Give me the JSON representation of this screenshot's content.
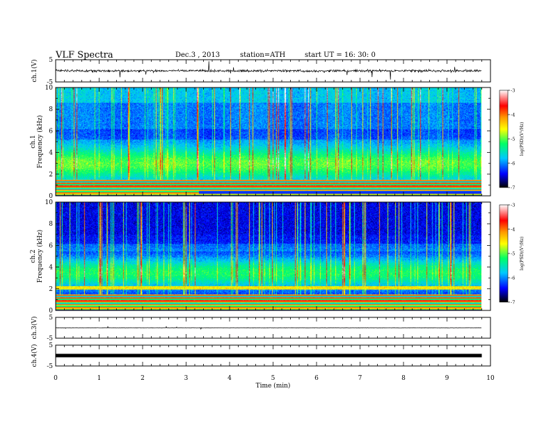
{
  "header": {
    "title": "VLF  Spectra",
    "date": "Dec.3  , 2013",
    "station": "station=ATH",
    "start": "start  UT =   16: 30: 0"
  },
  "chart_data": {
    "type": "heatmap",
    "xlabel": "Time  (min)",
    "xlim": [
      0,
      10
    ],
    "x_ticks": [
      0,
      1,
      2,
      3,
      4,
      5,
      6,
      7,
      8,
      9,
      10
    ],
    "data_end_min": 9.8,
    "panels": [
      {
        "id": "ch1-wave",
        "type": "line",
        "ylabel": "ch.1(V)",
        "ylim": [
          -5,
          5
        ],
        "y_ticks": [
          5,
          -5
        ],
        "baseline": 0,
        "noise": "high"
      },
      {
        "id": "ch1-spec",
        "type": "heatmap",
        "ylabel_top": "ch.1",
        "ylabel": "Frequency  (kHz)",
        "ylim": [
          0,
          10
        ],
        "y_ticks": [
          0,
          2,
          4,
          6,
          8,
          10
        ],
        "noise_band_khz": [
          1.5,
          4.5
        ],
        "quiet_band_khz": [
          4.5,
          9
        ]
      },
      {
        "id": "ch2-spec",
        "type": "heatmap",
        "ylabel_top": "ch.2",
        "ylabel": "Frequency  (kHz)",
        "ylim": [
          0,
          10
        ],
        "y_ticks": [
          0,
          2,
          4,
          6,
          8,
          10
        ],
        "noise_band_khz": [
          2,
          5
        ],
        "quiet_band_khz": [
          5,
          10
        ]
      },
      {
        "id": "ch3-wave",
        "type": "line",
        "ylabel": "ch.3(V)",
        "ylim": [
          -5,
          5
        ],
        "y_ticks": [
          5,
          -5
        ],
        "baseline": 0,
        "noise": "low"
      },
      {
        "id": "ch4-wave",
        "type": "line",
        "ylabel": "ch.4(V)",
        "ylim": [
          -5,
          5
        ],
        "y_ticks": [
          5,
          -5
        ],
        "baseline": 0,
        "noise": "band"
      }
    ],
    "colorbar": {
      "label": "log(PSD)(V²/Hz)",
      "range": [
        -7,
        -3
      ],
      "ticks": [
        -3,
        -4,
        -5,
        -6,
        -7
      ],
      "colors": [
        "#000000",
        "#0000ff",
        "#00c8ff",
        "#00ff66",
        "#ffff00",
        "#ff9900",
        "#ff0000",
        "#ffffff"
      ]
    }
  }
}
